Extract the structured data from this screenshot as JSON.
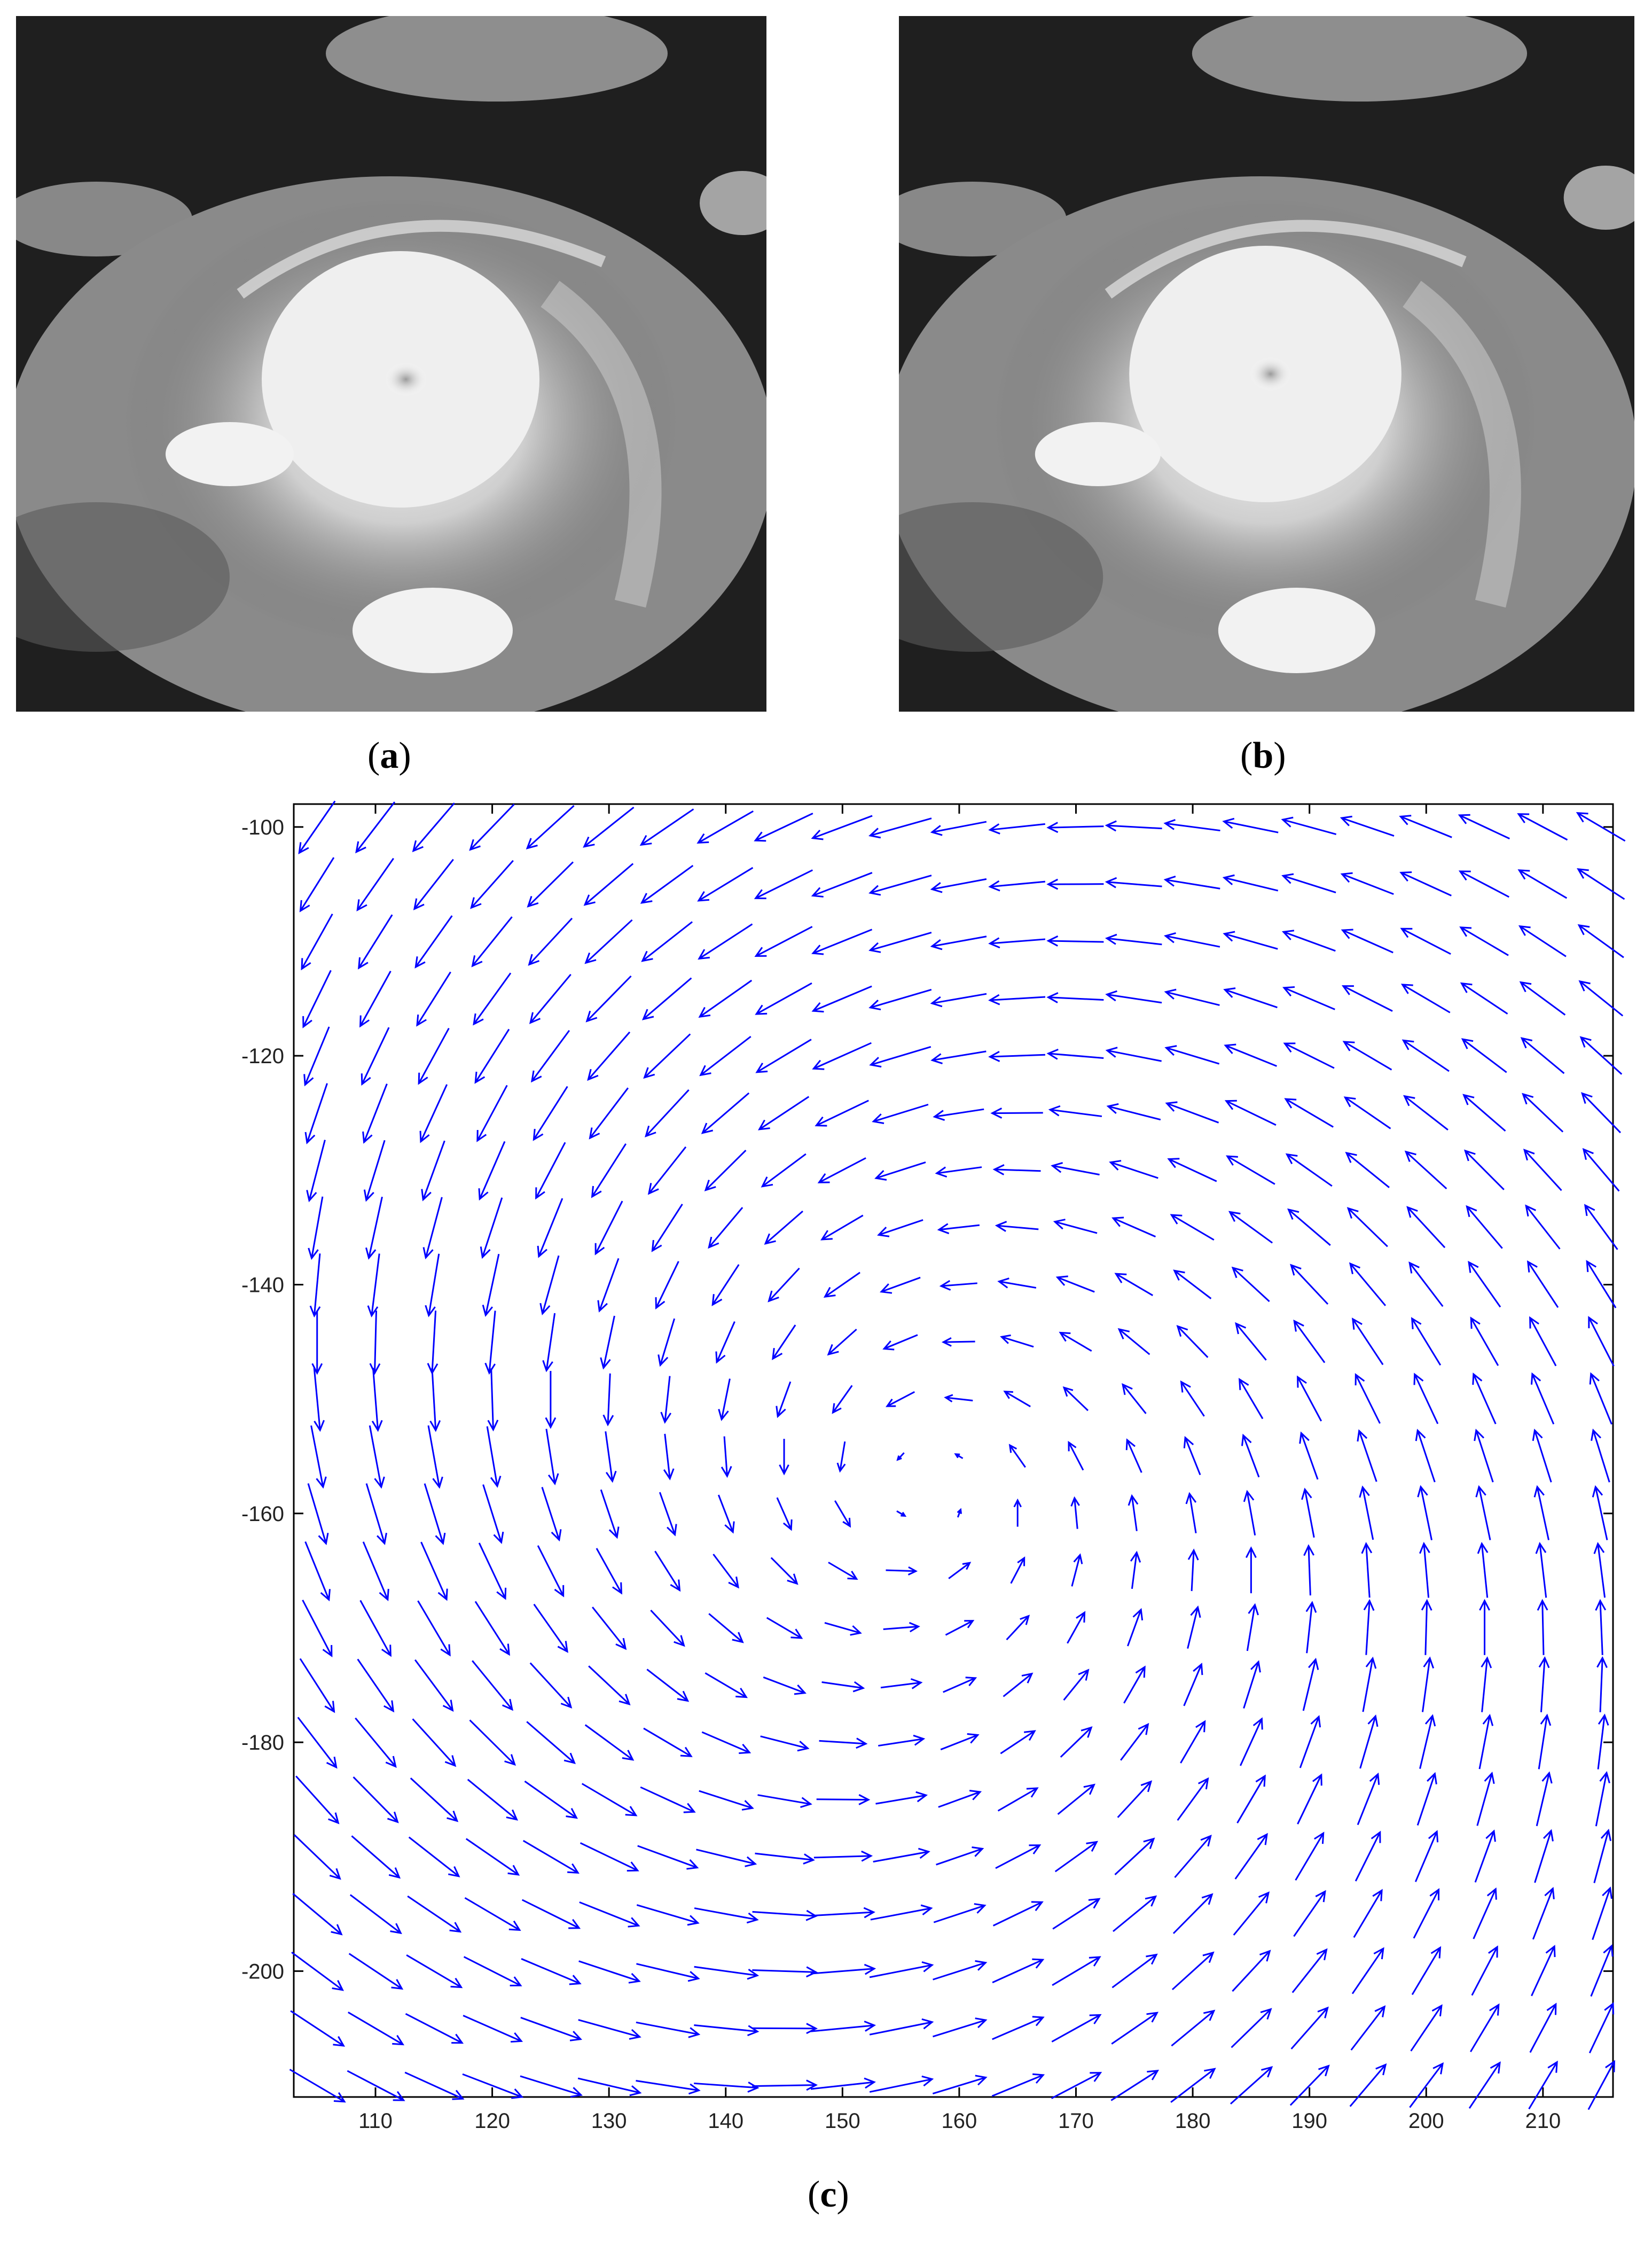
{
  "panels": {
    "a": {
      "caption_open": "(",
      "caption_letter": "a",
      "caption_close": ")"
    },
    "b": {
      "caption_open": "(",
      "caption_letter": "b",
      "caption_close": ")"
    },
    "c": {
      "caption_open": "(",
      "caption_letter": "c",
      "caption_close": ")"
    }
  },
  "colors": {
    "arrow": "#0000ff",
    "axis": "#000000",
    "background": "#ffffff"
  },
  "chart_data": {
    "type": "quiver",
    "title": "",
    "xlabel": "",
    "ylabel": "",
    "xlim": [
      103,
      216
    ],
    "ylim": [
      -211,
      -98
    ],
    "xticks": [
      110,
      120,
      130,
      140,
      150,
      160,
      170,
      180,
      190,
      200,
      210
    ],
    "yticks": [
      -100,
      -120,
      -140,
      -160,
      -180,
      -200
    ],
    "grid": false,
    "vector_field": {
      "description": "motion vectors estimated between frames (a) and (b)",
      "x_range": [
        105,
        215
      ],
      "y_range": [
        -210,
        -100
      ],
      "spacing": 5,
      "vortex_center": [
        157,
        -158
      ],
      "notes": "counter-clockwise rotation around the typhoon eye; strongest flow on the left side"
    }
  }
}
